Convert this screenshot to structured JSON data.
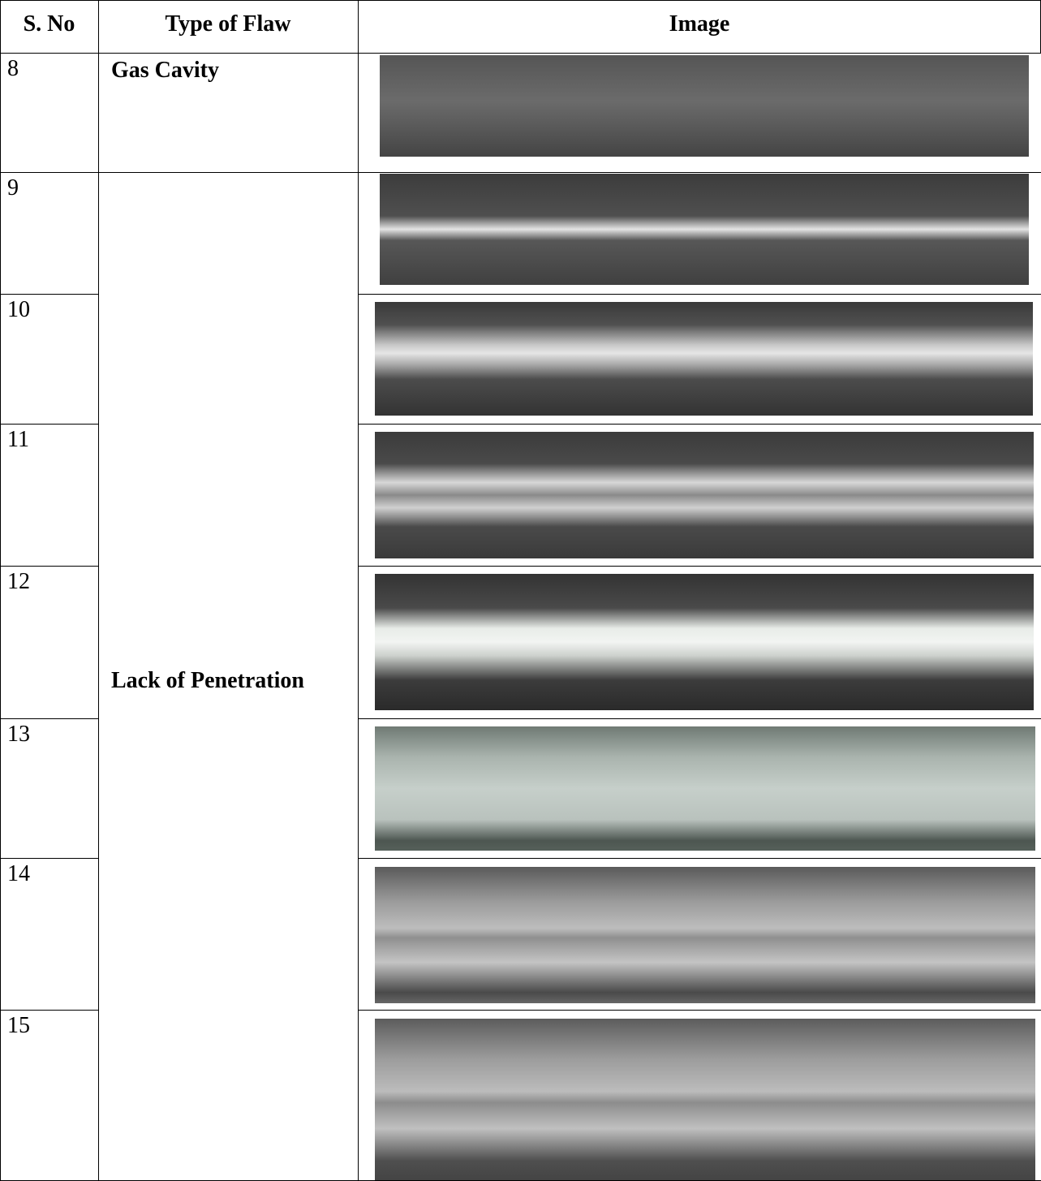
{
  "table": {
    "header": [
      "S. No",
      "Type of Flaw",
      "Image"
    ],
    "groups": [
      {
        "flaw": "Gas Cavity",
        "numbers": [
          "8"
        ]
      },
      {
        "flaw": "Lack of Penetration",
        "numbers": [
          "9",
          "10",
          "11",
          "12",
          "13",
          "14",
          "15"
        ]
      }
    ]
  }
}
